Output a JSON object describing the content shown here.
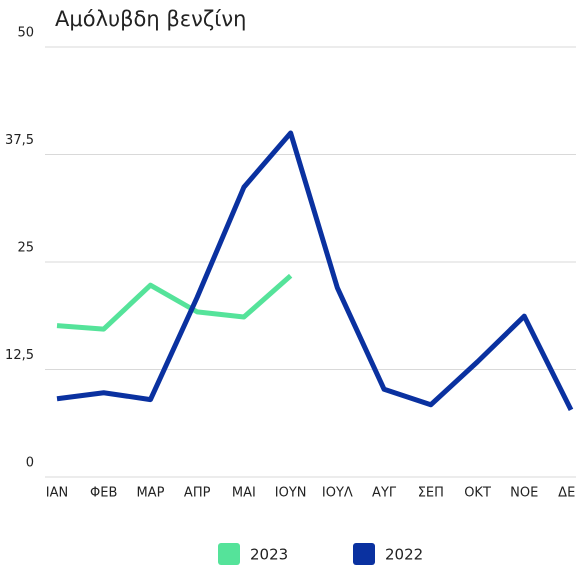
{
  "chart_data": {
    "type": "line",
    "title": "Αμόλυβδη βενζίνη",
    "categories": [
      "ΙΑΝ",
      "ΦΕΒ",
      "ΜΑΡ",
      "ΑΠΡ",
      "ΜΑΙ",
      "ΙΟΥΝ",
      "ΙΟΥΛ",
      "ΑΥΓ",
      "ΣΕΠ",
      "ΟΚΤ",
      "ΝΟΕ",
      "ΔΕΚ"
    ],
    "series": [
      {
        "name": "2023",
        "color": "#55e39a",
        "values": [
          17.6,
          17.2,
          22.3,
          19.2,
          18.6,
          23.4,
          null,
          null,
          null,
          null,
          null,
          null
        ]
      },
      {
        "name": "2022",
        "color": "#0a31a0",
        "values": [
          9.1,
          9.8,
          9.0,
          20.9,
          33.7,
          40,
          22,
          10.2,
          8.4,
          13.4,
          18.7,
          7.8
        ]
      }
    ],
    "ylim": [
      0,
      50
    ],
    "yticks": [
      0,
      {
        "value": 12.5,
        "label": "12,5"
      },
      25,
      {
        "value": 37.5,
        "label": "37,5"
      },
      50
    ],
    "grid": true,
    "legend": "bottom"
  }
}
